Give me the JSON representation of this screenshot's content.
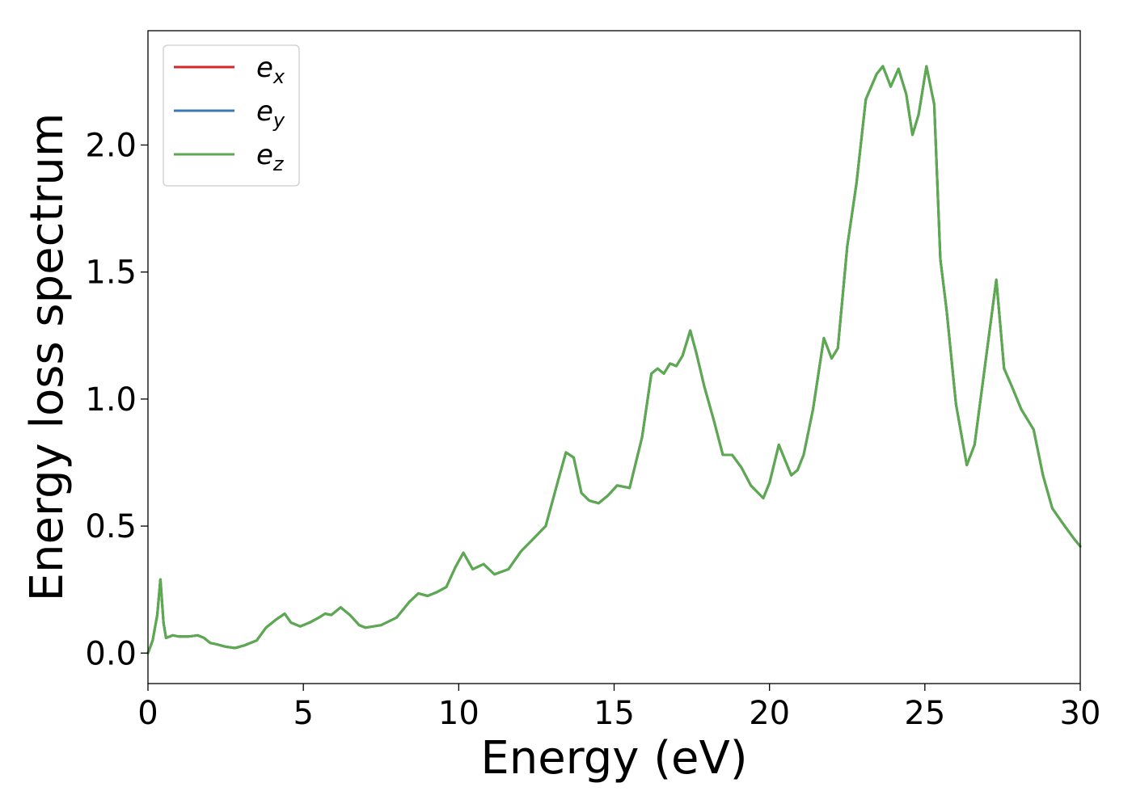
{
  "chart_data": {
    "type": "line",
    "xlabel": "Energy (eV)",
    "ylabel": "Energy loss spectrum",
    "xlim": [
      0,
      30
    ],
    "ylim": [
      -0.12,
      2.45
    ],
    "xticks": [
      0,
      5,
      10,
      15,
      20,
      25,
      30
    ],
    "xtick_labels": [
      "0",
      "5",
      "10",
      "15",
      "20",
      "25",
      "30"
    ],
    "yticks": [
      0.0,
      0.5,
      1.0,
      1.5,
      2.0
    ],
    "ytick_labels": [
      "0.0",
      "0.5",
      "1.0",
      "1.5",
      "2.0"
    ],
    "grid": false,
    "legend_position": "top-left",
    "series": [
      {
        "name": "e",
        "subscript": "x",
        "color": "#d62728"
      },
      {
        "name": "e",
        "subscript": "y",
        "color": "#3a78b6"
      },
      {
        "name": "e",
        "subscript": "z",
        "color": "#5aab4e"
      }
    ],
    "x": [
      0,
      0.15,
      0.3,
      0.4,
      0.5,
      0.58,
      0.7,
      0.8,
      1.0,
      1.3,
      1.6,
      1.8,
      2.0,
      2.2,
      2.5,
      2.8,
      3.1,
      3.5,
      3.8,
      4.1,
      4.4,
      4.6,
      4.9,
      5.2,
      5.5,
      5.7,
      5.9,
      6.2,
      6.5,
      6.8,
      7.0,
      7.5,
      8.0,
      8.4,
      8.7,
      9.0,
      9.3,
      9.6,
      9.9,
      10.15,
      10.45,
      10.8,
      11.15,
      11.6,
      12.0,
      12.4,
      12.8,
      13.2,
      13.45,
      13.7,
      13.95,
      14.2,
      14.5,
      14.8,
      15.1,
      15.5,
      15.9,
      16.2,
      16.4,
      16.6,
      16.8,
      17.0,
      17.2,
      17.45,
      17.65,
      17.9,
      18.2,
      18.5,
      18.8,
      19.1,
      19.4,
      19.8,
      20.0,
      20.3,
      20.5,
      20.7,
      20.9,
      21.1,
      21.4,
      21.75,
      22.0,
      22.2,
      22.5,
      22.8,
      23.1,
      23.45,
      23.65,
      23.9,
      24.15,
      24.4,
      24.6,
      24.8,
      25.05,
      25.3,
      25.5,
      25.7,
      26.0,
      26.35,
      26.6,
      26.9,
      27.3,
      27.55,
      27.8,
      28.1,
      28.5,
      28.8,
      29.1,
      29.5,
      29.8,
      30.0
    ],
    "y": [
      0.0,
      0.05,
      0.15,
      0.29,
      0.12,
      0.06,
      0.065,
      0.07,
      0.065,
      0.065,
      0.07,
      0.06,
      0.04,
      0.035,
      0.025,
      0.02,
      0.03,
      0.05,
      0.1,
      0.13,
      0.155,
      0.12,
      0.105,
      0.12,
      0.14,
      0.155,
      0.15,
      0.18,
      0.15,
      0.11,
      0.1,
      0.11,
      0.14,
      0.2,
      0.235,
      0.225,
      0.24,
      0.26,
      0.34,
      0.395,
      0.33,
      0.35,
      0.31,
      0.33,
      0.4,
      0.45,
      0.5,
      0.68,
      0.79,
      0.77,
      0.63,
      0.6,
      0.59,
      0.62,
      0.66,
      0.65,
      0.85,
      1.1,
      1.12,
      1.1,
      1.14,
      1.13,
      1.17,
      1.27,
      1.18,
      1.05,
      0.92,
      0.78,
      0.78,
      0.73,
      0.66,
      0.61,
      0.67,
      0.82,
      0.76,
      0.7,
      0.72,
      0.78,
      0.96,
      1.24,
      1.16,
      1.2,
      1.6,
      1.85,
      2.18,
      2.28,
      2.31,
      2.23,
      2.3,
      2.2,
      2.04,
      2.12,
      2.31,
      2.16,
      1.55,
      1.35,
      0.98,
      0.74,
      0.82,
      1.1,
      1.47,
      1.12,
      1.05,
      0.96,
      0.88,
      0.7,
      0.57,
      0.5,
      0.45,
      0.42
    ]
  }
}
